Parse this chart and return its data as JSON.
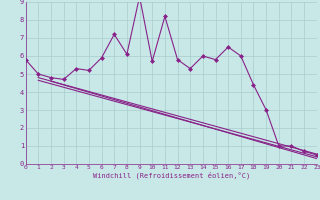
{
  "xlabel": "Windchill (Refroidissement éolien,°C)",
  "bg_color": "#c8e8e8",
  "grid_color": "#a8cccc",
  "line_color": "#882288",
  "xlim": [
    0,
    23
  ],
  "ylim": [
    0,
    9
  ],
  "xticks": [
    0,
    1,
    2,
    3,
    4,
    5,
    6,
    7,
    8,
    9,
    10,
    11,
    12,
    13,
    14,
    15,
    16,
    17,
    18,
    19,
    20,
    21,
    22,
    23
  ],
  "yticks": [
    0,
    1,
    2,
    3,
    4,
    5,
    6,
    7,
    8,
    9
  ],
  "main_x": [
    0,
    1,
    2,
    3,
    4,
    5,
    6,
    7,
    8,
    9,
    10,
    11,
    12,
    13,
    14,
    15,
    16,
    17,
    18,
    19,
    20,
    21,
    22,
    23
  ],
  "main_y": [
    5.8,
    5.0,
    4.8,
    4.7,
    5.3,
    5.2,
    5.9,
    7.2,
    6.1,
    9.3,
    5.7,
    8.2,
    5.8,
    5.3,
    6.0,
    5.8,
    6.5,
    6.0,
    4.4,
    3.0,
    1.0,
    1.0,
    0.7,
    0.5
  ],
  "trend1_x": [
    1,
    23
  ],
  "trend1_y": [
    4.8,
    0.55
  ],
  "trend2_x": [
    1,
    23
  ],
  "trend2_y": [
    4.65,
    0.4
  ],
  "trend3_x": [
    2,
    23
  ],
  "trend3_y": [
    4.6,
    0.3
  ]
}
